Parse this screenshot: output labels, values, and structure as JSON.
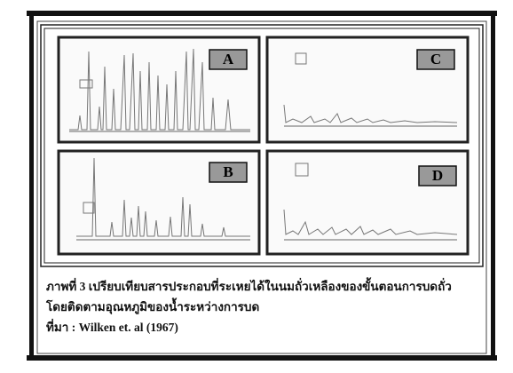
{
  "figure": {
    "panels": [
      "A",
      "B",
      "C",
      "D"
    ],
    "caption": [
      "ภาพที่ 3  เปรียบเทียบสารประกอบที่ระเหยได้ในนมถั่วเหลืองของขั้นตอนการบดถั่ว",
      "โดยติดตามอุณหภูมิของน้ำระหว่างการบด"
    ],
    "source": "ที่มา :  Wilken et. al (1967)"
  }
}
